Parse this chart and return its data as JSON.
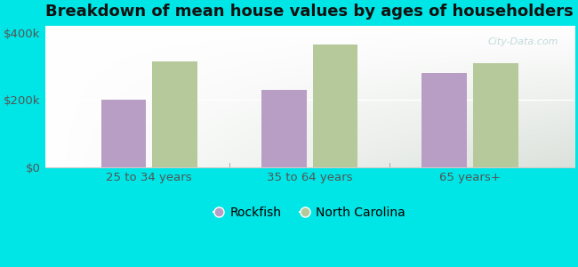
{
  "title": "Breakdown of mean house values by ages of householders",
  "categories": [
    "25 to 34 years",
    "35 to 64 years",
    "65 years+"
  ],
  "rockfish_values": [
    200000,
    230000,
    280000
  ],
  "nc_values": [
    315000,
    365000,
    310000
  ],
  "rockfish_color": "#b89ec4",
  "nc_color": "#b5c99a",
  "background_color": "#00e5e5",
  "bar_width": 0.28,
  "ylim": [
    0,
    420000
  ],
  "ytick_values": [
    0,
    200000,
    400000
  ],
  "ytick_labels": [
    "$0",
    "$200k",
    "$400k"
  ],
  "legend_labels": [
    "Rockfish",
    "North Carolina"
  ],
  "title_fontsize": 13,
  "tick_fontsize": 9.5,
  "legend_fontsize": 10,
  "watermark_text": "City-Data.com"
}
